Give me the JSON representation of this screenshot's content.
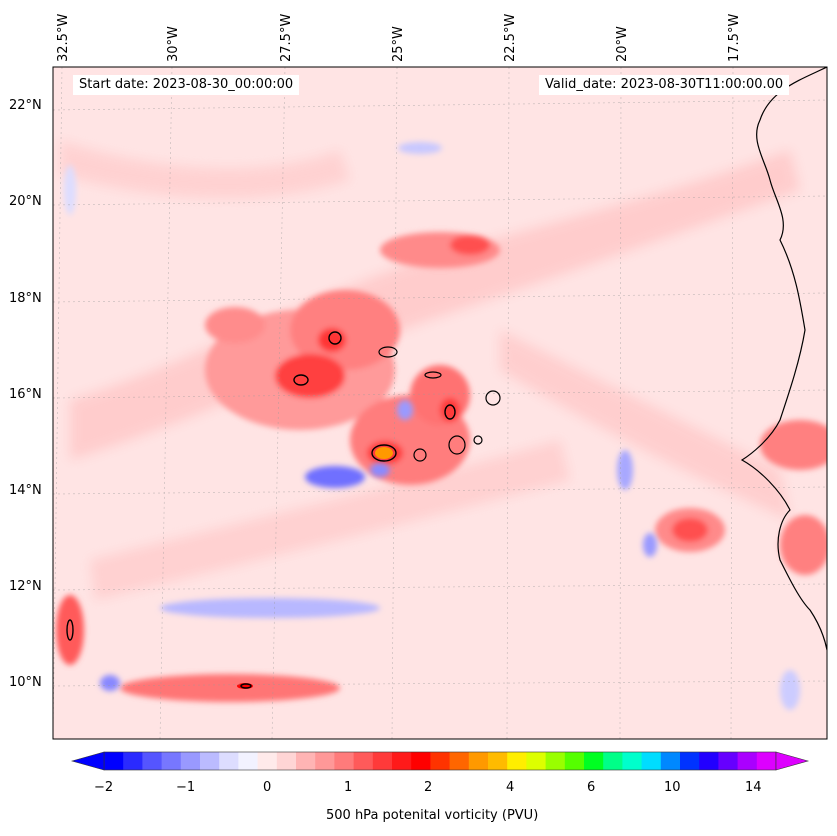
{
  "map": {
    "start_date": "Start date: 2023-08-30_00:00:00",
    "valid_date": "Valid_date: 2023-08-30T11:00:00.00",
    "longitude_labels": [
      "32.5°W",
      "30°W",
      "27.5°W",
      "25°W",
      "22.5°W",
      "20°W",
      "17.5°W"
    ],
    "latitude_labels": [
      "22°N",
      "20°N",
      "18°N",
      "16°N",
      "14°N",
      "12°N",
      "10°N"
    ],
    "colorbar": {
      "label": "500 hPa potenital vorticity (PVU)",
      "tick_labels": [
        "−2",
        "−1",
        "0",
        "1",
        "2",
        "4",
        "6",
        "10",
        "14"
      ],
      "colors": [
        "#0000ff",
        "#2a2aff",
        "#5555ff",
        "#7777ff",
        "#9999ff",
        "#bbbbff",
        "#ddddff",
        "#f2f2ff",
        "#ffeaea",
        "#ffd5d5",
        "#ffb4b4",
        "#ff9898",
        "#ff7b7b",
        "#ff5a5a",
        "#ff3a3a",
        "#ff1a1a",
        "#ff0000",
        "#ff3300",
        "#ff6600",
        "#ff9900",
        "#ffbb00",
        "#ffee00",
        "#ddff00",
        "#99ff00",
        "#55ff00",
        "#00ff22",
        "#00ff88",
        "#00ffcc",
        "#00ddff",
        "#0088ff",
        "#0033ff",
        "#2200ff",
        "#6600ff",
        "#aa00ff",
        "#dd00ff"
      ]
    }
  }
}
